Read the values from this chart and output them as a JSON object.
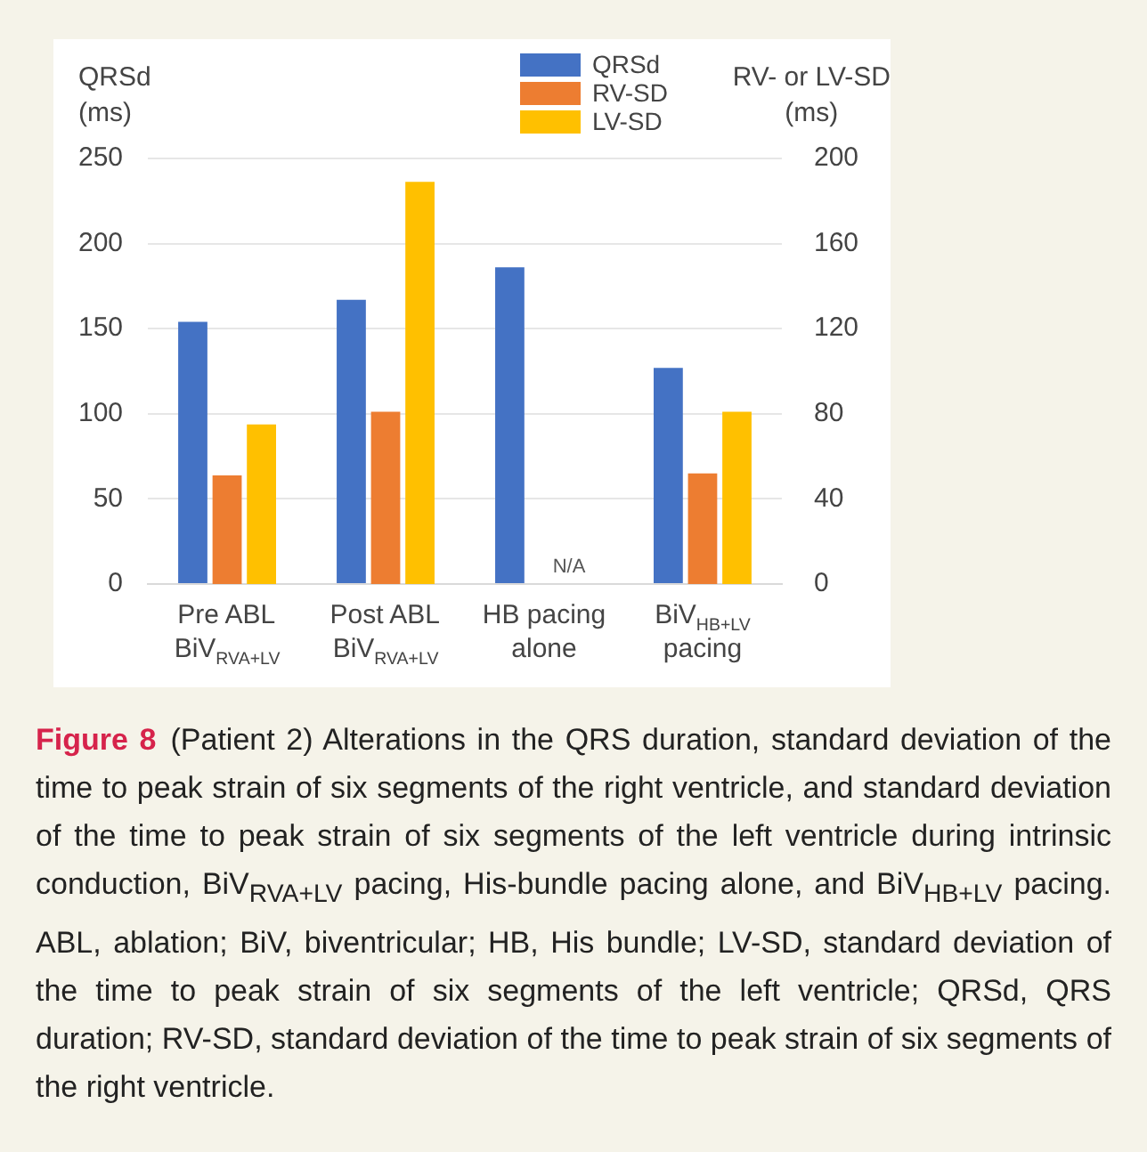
{
  "chart_data": {
    "type": "bar",
    "categories": [
      "Pre ABL\nBiV$_{RVA+LV}$",
      "Post ABL\nBiV$_{RVA+LV}$",
      "HB pacing\nalone",
      "BiV$_{HB+LV}$\npacing"
    ],
    "series": [
      {
        "name": "QRSd",
        "color": "#4472c4",
        "values": [
          154,
          167,
          186,
          127
        ]
      },
      {
        "name": "RV-SD",
        "color": "#ed7d31",
        "axis": "y2",
        "values": [
          51,
          81,
          null,
          52
        ]
      },
      {
        "name": "LV-SD",
        "color": "#ffc000",
        "axis": "y2",
        "values": [
          75,
          189,
          null,
          81
        ]
      }
    ],
    "ylabel": "QRSd\n(ms)",
    "y2label": "RV- or LV-SD\n(ms)",
    "ylim": [
      0,
      250
    ],
    "yticks": [
      0,
      50,
      100,
      150,
      200,
      250
    ],
    "y2lim": [
      0,
      200
    ],
    "y2ticks": [
      0,
      40,
      80,
      120,
      160,
      200
    ],
    "grid": "y",
    "legend": "top right",
    "annotations": [
      "N/A",
      "Figure 8",
      "(Patient 2) Alterations in the QRS duration, standard deviation of the time to peak strain of six segments of the right ventricle, and standard deviation of the time to peak strain of six segments of the left ventricle during intrinsic conduction, BiV$_{RVA+LV}$ pacing, His-bundle pacing alone, and BiV$_{HB+LV}$ pacing. ABL, ablation; BiV, biventricular; HB, His bundle; LV-SD, standard deviation of the time to peak strain of six segments of the left ventricle; QRSd, QRS duration; RV-SD, standard deviation of the time to peak strain of six segments of the right ventricle."
    ]
  }
}
